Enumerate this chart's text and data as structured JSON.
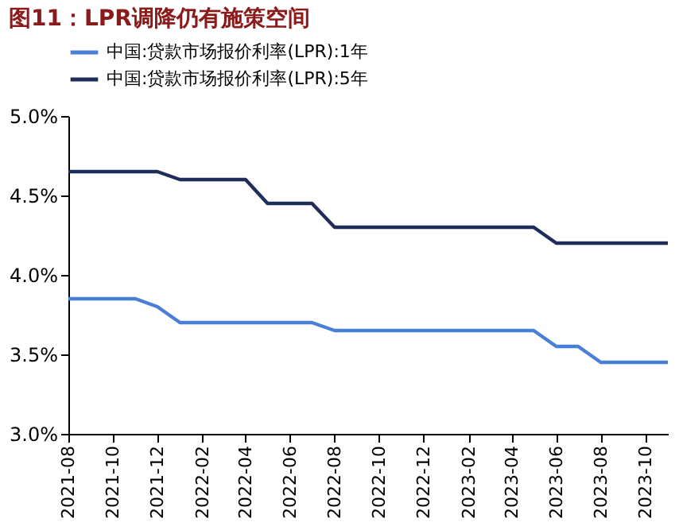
{
  "chart_data": {
    "type": "line",
    "title": "图11：LPR调降仍有施策空间",
    "x": [
      "2021-08",
      "2021-09",
      "2021-10",
      "2021-11",
      "2021-12",
      "2022-01",
      "2022-02",
      "2022-03",
      "2022-04",
      "2022-05",
      "2022-06",
      "2022-07",
      "2022-08",
      "2022-09",
      "2022-10",
      "2022-11",
      "2022-12",
      "2023-01",
      "2023-02",
      "2023-03",
      "2023-04",
      "2023-05",
      "2023-06",
      "2023-07",
      "2023-08",
      "2023-09",
      "2023-10",
      "2023-11"
    ],
    "series": [
      {
        "name": "中国:贷款市场报价利率(LPR):1年",
        "color": "#4a7fd6",
        "values": [
          3.85,
          3.85,
          3.85,
          3.85,
          3.8,
          3.7,
          3.7,
          3.7,
          3.7,
          3.7,
          3.7,
          3.7,
          3.65,
          3.65,
          3.65,
          3.65,
          3.65,
          3.65,
          3.65,
          3.65,
          3.65,
          3.65,
          3.55,
          3.55,
          3.45,
          3.45,
          3.45,
          3.45
        ]
      },
      {
        "name": "中国:贷款市场报价利率(LPR):5年",
        "color": "#1f2d5a",
        "values": [
          4.65,
          4.65,
          4.65,
          4.65,
          4.65,
          4.6,
          4.6,
          4.6,
          4.6,
          4.45,
          4.45,
          4.45,
          4.3,
          4.3,
          4.3,
          4.3,
          4.3,
          4.3,
          4.3,
          4.3,
          4.3,
          4.3,
          4.2,
          4.2,
          4.2,
          4.2,
          4.2,
          4.2
        ]
      }
    ],
    "xlim": [
      "2021-08",
      "2023-11"
    ],
    "xticks": [
      "2021-08",
      "2021-10",
      "2021-12",
      "2022-02",
      "2022-04",
      "2022-06",
      "2022-08",
      "2022-10",
      "2022-12",
      "2023-02",
      "2023-04",
      "2023-06",
      "2023-08",
      "2023-10"
    ],
    "ylim": [
      3.0,
      5.0
    ],
    "yticks": [
      {
        "value": 3.0,
        "label": "3.0%"
      },
      {
        "value": 3.5,
        "label": "3.5%"
      },
      {
        "value": 4.0,
        "label": "4.0%"
      },
      {
        "value": 4.5,
        "label": "4.5%"
      },
      {
        "value": 5.0,
        "label": "5.0%"
      }
    ],
    "grid": false,
    "legend": "top",
    "marker": "none",
    "line_style": "solid"
  }
}
